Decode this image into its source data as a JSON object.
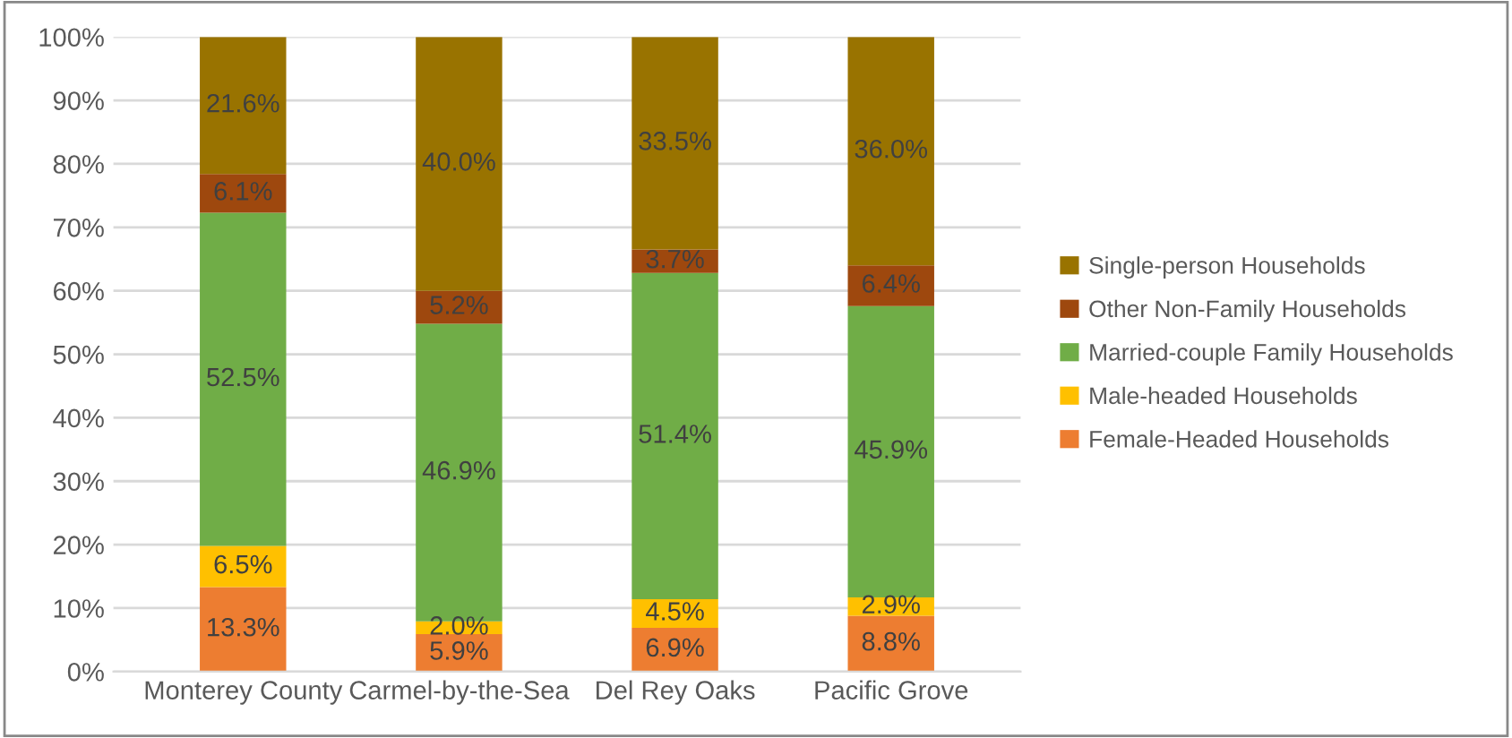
{
  "chart_data": {
    "type": "bar",
    "stacked": true,
    "categories": [
      "Monterey County",
      "Carmel-by-the-Sea",
      "Del Rey Oaks",
      "Pacific Grove"
    ],
    "series": [
      {
        "name": "Female-Headed Households",
        "color": "#ed7d31",
        "values": [
          13.3,
          5.9,
          6.9,
          8.8
        ],
        "value_labels": [
          "13.3%",
          "5.9%",
          "6.9%",
          "8.8%"
        ]
      },
      {
        "name": "Male-headed Households",
        "color": "#ffc000",
        "values": [
          6.5,
          2.0,
          4.5,
          2.9
        ],
        "value_labels": [
          "6.5%",
          "2.0%",
          "4.5%",
          "2.9%"
        ]
      },
      {
        "name": "Married-couple Family Households",
        "color": "#70ad47",
        "values": [
          52.5,
          46.9,
          51.4,
          45.9
        ],
        "value_labels": [
          "52.5%",
          "46.9%",
          "51.4%",
          "45.9%"
        ]
      },
      {
        "name": "Other Non-Family Households",
        "color": "#9e480e",
        "values": [
          6.1,
          5.2,
          3.7,
          6.4
        ],
        "value_labels": [
          "6.1%",
          "5.2%",
          "3.7%",
          "6.4%"
        ]
      },
      {
        "name": "Single-person Households",
        "color": "#997300",
        "values": [
          21.6,
          40.0,
          33.5,
          36.0
        ],
        "value_labels": [
          "21.6%",
          "40.0%",
          "33.5%",
          "36.0%"
        ]
      }
    ],
    "ylim": [
      0,
      100
    ],
    "yticks": [
      {
        "value": 0,
        "label": "0%"
      },
      {
        "value": 10,
        "label": "10%"
      },
      {
        "value": 20,
        "label": "20%"
      },
      {
        "value": 30,
        "label": "30%"
      },
      {
        "value": 40,
        "label": "40%"
      },
      {
        "value": 50,
        "label": "50%"
      },
      {
        "value": 60,
        "label": "60%"
      },
      {
        "value": 70,
        "label": "70%"
      },
      {
        "value": 80,
        "label": "80%"
      },
      {
        "value": 90,
        "label": "90%"
      },
      {
        "value": 100,
        "label": "100%"
      }
    ],
    "grid": "y",
    "legend": "right"
  }
}
